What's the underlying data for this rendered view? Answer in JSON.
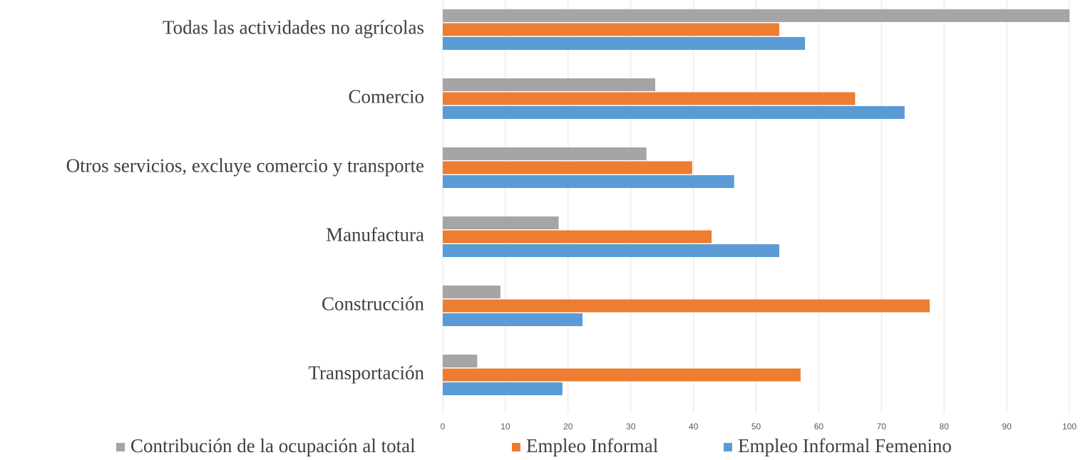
{
  "chart_data": {
    "type": "bar",
    "orientation": "horizontal",
    "categories": [
      "Todas las actividades no agrícolas",
      "Comercio",
      "Otros servicios, excluye comercio y transporte",
      "Manufactura",
      "Construcción",
      "Transportación"
    ],
    "series": [
      {
        "name": "Contribución de la ocupación al total",
        "color": "#a5a5a5",
        "values": [
          100,
          33.9,
          32.5,
          18.5,
          9.2,
          5.5
        ]
      },
      {
        "name": "Empleo Informal",
        "color": "#ed7d31",
        "values": [
          53.7,
          65.8,
          39.8,
          42.9,
          77.7,
          57.1
        ]
      },
      {
        "name": "Empleo Informal Femenino",
        "color": "#5b9bd5",
        "values": [
          57.8,
          73.7,
          46.5,
          53.7,
          22.3,
          19.1
        ]
      }
    ],
    "xlim": [
      0,
      100
    ],
    "xticks": [
      0,
      10,
      20,
      30,
      40,
      50,
      60,
      70,
      80,
      90,
      100
    ],
    "grid": true,
    "legend": "bottom"
  }
}
